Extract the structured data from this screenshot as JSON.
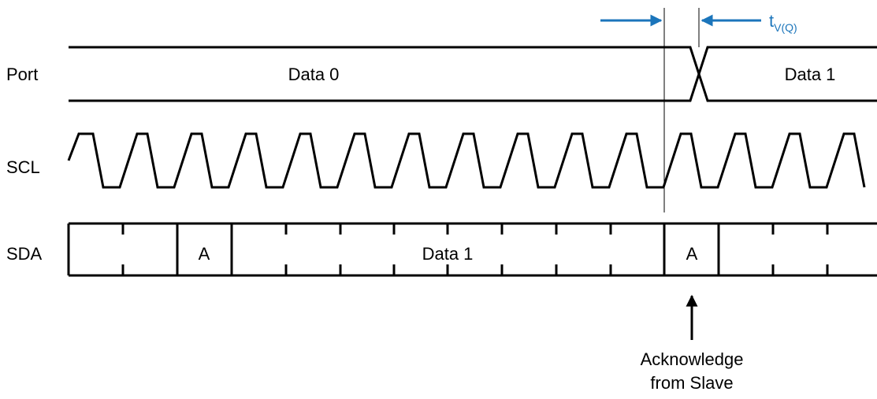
{
  "signals": {
    "port": "Port",
    "scl": "SCL",
    "sda": "SDA"
  },
  "port_bus": {
    "segment_0": "Data 0",
    "segment_1": "Data 1"
  },
  "sda_bus": {
    "ack_1": "A",
    "data": "Data 1",
    "ack_2": "A"
  },
  "timing": {
    "symbol": "t",
    "subscript": "V(Q)",
    "color": "#1b75bb"
  },
  "annotation": {
    "line_1": "Acknowledge",
    "line_2": "from Slave"
  }
}
